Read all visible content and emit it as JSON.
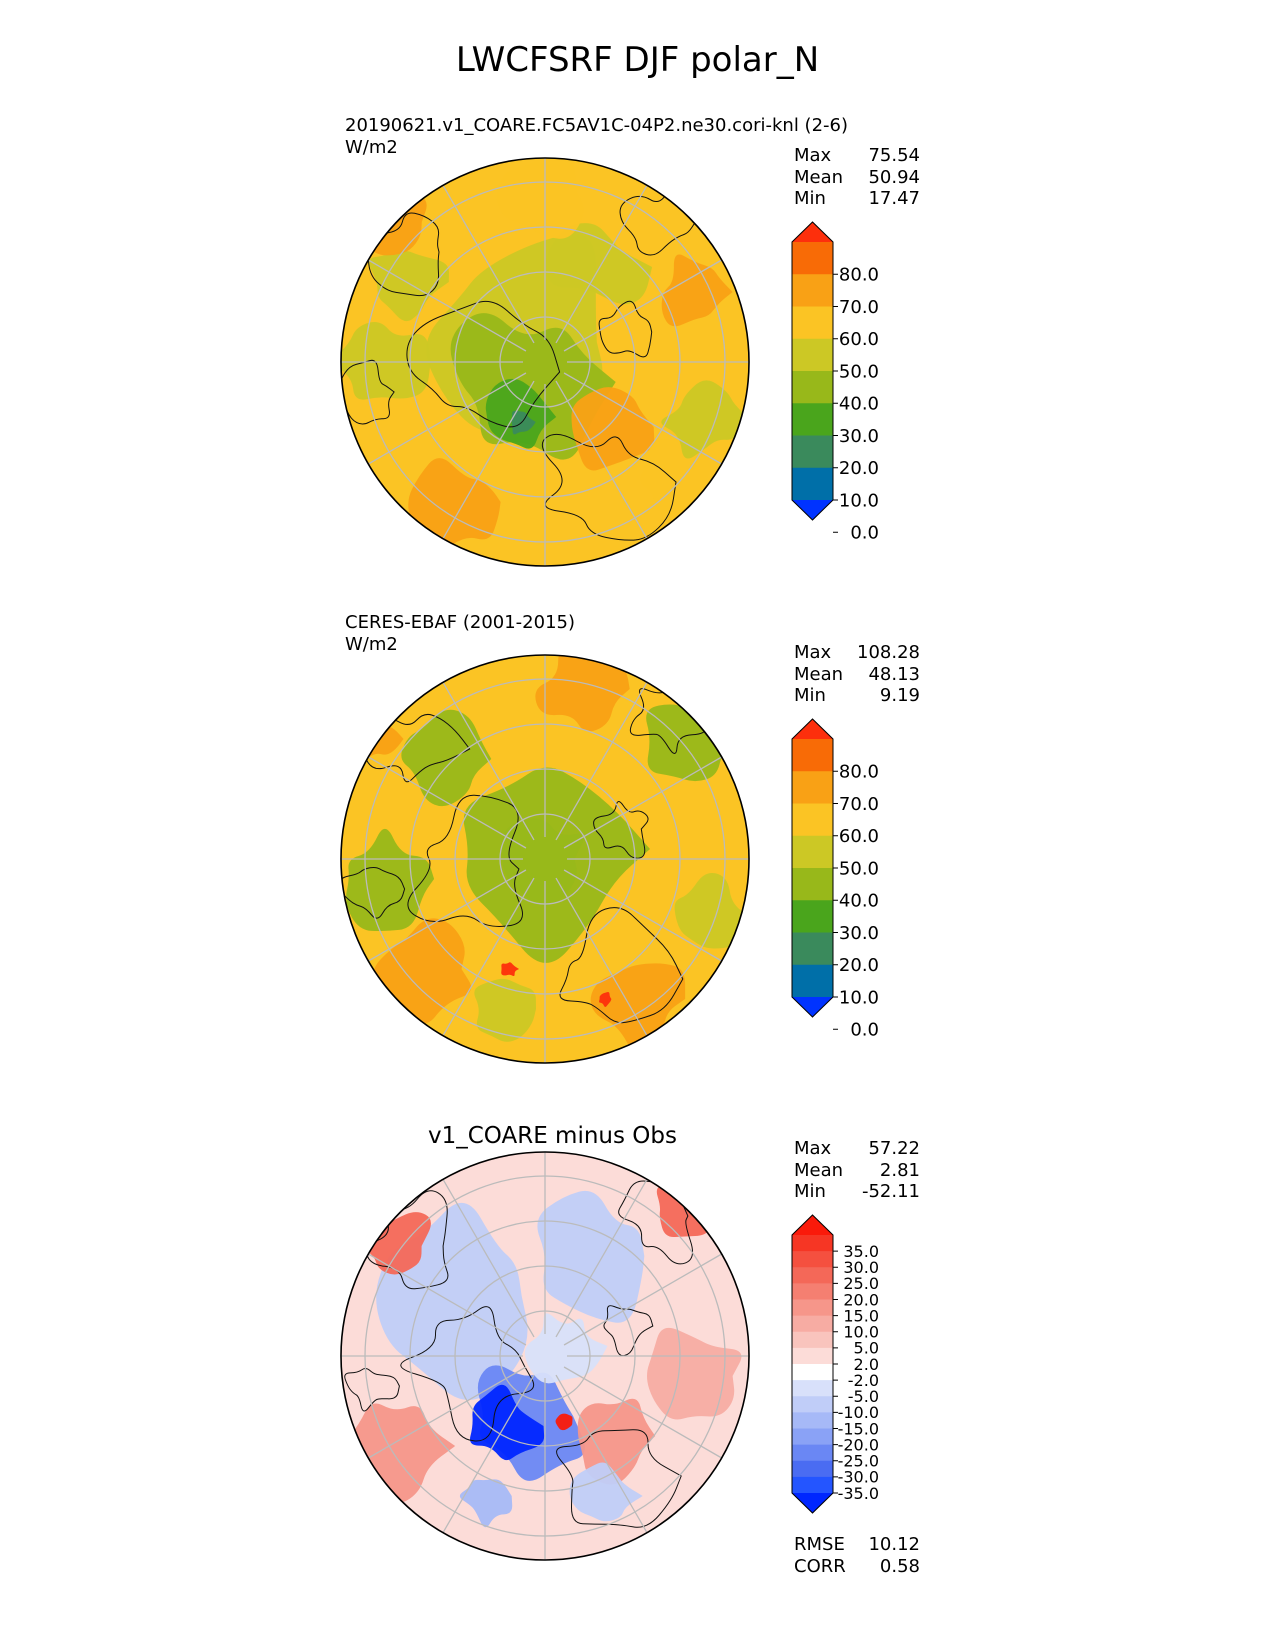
{
  "title": "LWCFSRF DJF polar_N",
  "colors": {
    "abs_levels": [
      "#0033ff",
      "#006fa8",
      "#3a8a5c",
      "#4aa51c",
      "#98b81a",
      "#ccc825",
      "#fbc424",
      "#f9a115",
      "#f86b06",
      "#fd2f0c"
    ],
    "diff_levels": [
      "#0026ff",
      "#2455ff",
      "#4a6cf2",
      "#6a87f4",
      "#8aa2f6",
      "#a6b9f7",
      "#c0cdf8",
      "#d8e0fa",
      "#ffffff",
      "#fcdcd8",
      "#f9c4bd",
      "#f7aca3",
      "#f6968a",
      "#f57f71",
      "#f46858",
      "#f5503f",
      "#f63624",
      "#fa1a0a"
    ],
    "land_outline": "#111111",
    "grid": "#bbbbbb"
  },
  "panels": [
    {
      "id": "test",
      "title_line1": "20190621.v1_COARE.FC5AV1C-04P2.ne30.cori-knl (2-6)",
      "title_line2": "W/m2",
      "stats": [
        {
          "label": "Max",
          "value": "75.54"
        },
        {
          "label": "Mean",
          "value": "50.94"
        },
        {
          "label": "Min",
          "value": "17.47"
        }
      ],
      "colorbar_ticks": [
        "80.0",
        "70.0",
        "60.0",
        "50.0",
        "40.0",
        "30.0",
        "20.0",
        "10.0",
        "0.0"
      ]
    },
    {
      "id": "ref",
      "title_line1": "CERES-EBAF (2001-2015)",
      "title_line2": "W/m2",
      "stats": [
        {
          "label": "Max",
          "value": "108.28"
        },
        {
          "label": "Mean",
          "value": "48.13"
        },
        {
          "label": "Min",
          "value": "9.19"
        }
      ],
      "colorbar_ticks": [
        "80.0",
        "70.0",
        "60.0",
        "50.0",
        "40.0",
        "30.0",
        "20.0",
        "10.0",
        "0.0"
      ]
    },
    {
      "id": "diff",
      "title_center": "v1_COARE minus Obs",
      "stats": [
        {
          "label": "Max",
          "value": "57.22"
        },
        {
          "label": "Mean",
          "value": "2.81"
        },
        {
          "label": "Min",
          "value": "-52.11"
        }
      ],
      "metrics": [
        {
          "label": "RMSE",
          "value": "10.12"
        },
        {
          "label": "CORR",
          "value": "0.58"
        }
      ],
      "colorbar_ticks": [
        "35.0",
        "30.0",
        "25.0",
        "20.0",
        "15.0",
        "10.0",
        "5.0",
        "2.0",
        "-2.0",
        "-5.0",
        "-10.0",
        "-15.0",
        "-20.0",
        "-25.0",
        "-30.0",
        "-35.0"
      ]
    }
  ],
  "chart_data": [
    {
      "type": "heatmap",
      "projection": "north polar stereographic",
      "title": "20190621.v1_COARE.FC5AV1C-04P2.ne30.cori-knl (2-6)",
      "units": "W/m2",
      "levels": [
        0,
        10,
        20,
        30,
        40,
        50,
        60,
        70,
        80
      ],
      "max": 75.54,
      "mean": 50.94,
      "min": 17.47
    },
    {
      "type": "heatmap",
      "projection": "north polar stereographic",
      "title": "CERES-EBAF (2001-2015)",
      "units": "W/m2",
      "levels": [
        0,
        10,
        20,
        30,
        40,
        50,
        60,
        70,
        80
      ],
      "max": 108.28,
      "mean": 48.13,
      "min": 9.19
    },
    {
      "type": "heatmap",
      "projection": "north polar stereographic",
      "title": "v1_COARE minus Obs",
      "levels": [
        -35,
        -30,
        -25,
        -20,
        -15,
        -10,
        -5,
        -2,
        2,
        5,
        10,
        15,
        20,
        25,
        30,
        35
      ],
      "max": 57.22,
      "mean": 2.81,
      "min": -52.11,
      "rmse": 10.12,
      "corr": 0.58
    }
  ]
}
